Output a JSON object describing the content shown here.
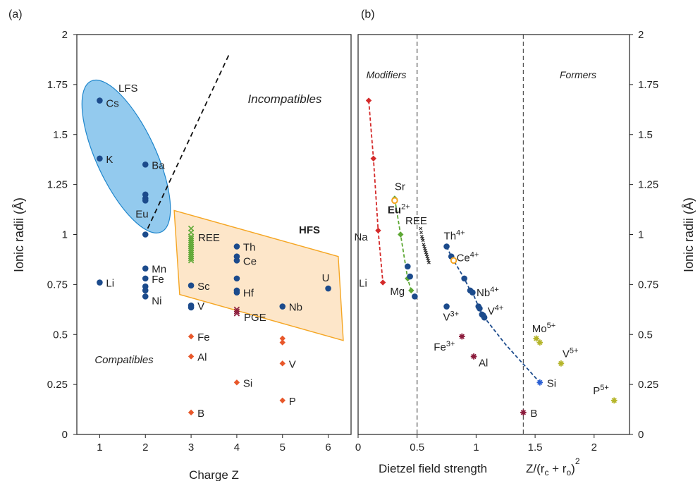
{
  "chart_data": [
    {
      "panel": "(a)",
      "type": "scatter",
      "title": "",
      "xlabel": "Charge Z",
      "ylabel": "Ionic radii (Å)",
      "xlim": [
        0.5,
        6.5
      ],
      "ylim": [
        0,
        2
      ],
      "x_ticks": [
        "1",
        "2",
        "3",
        "4",
        "5",
        "6"
      ],
      "y_ticks": [
        "0",
        "0.25",
        "0.5",
        "0.75",
        "1",
        "1.25",
        "1.5",
        "1.75",
        "2"
      ],
      "annotations": {
        "incompatibles": "Incompatibles",
        "compatibles": "Compatibles",
        "lfs": "LFS",
        "hfs": "HFS",
        "ree": "REE",
        "pge": "PGE"
      },
      "regions": [
        {
          "name": "LFS",
          "color": "#3a9fe0"
        },
        {
          "name": "HFS",
          "color": "#f5a623"
        }
      ],
      "series": [
        {
          "group": "blue",
          "color": "#1c4b8c",
          "points": [
            {
              "x": 1,
              "y": 1.67,
              "label": "Cs"
            },
            {
              "x": 1,
              "y": 1.38,
              "label": "K"
            },
            {
              "x": 1,
              "y": 0.76,
              "label": "Li"
            },
            {
              "x": 2,
              "y": 1.35,
              "label": "Ba"
            },
            {
              "x": 2,
              "y": 1.2,
              "label": ""
            },
            {
              "x": 2,
              "y": 1.18,
              "label": ""
            },
            {
              "x": 2,
              "y": 1.17,
              "label": "Eu"
            },
            {
              "x": 2,
              "y": 1.0,
              "label": ""
            },
            {
              "x": 2,
              "y": 0.83,
              "label": "Mn"
            },
            {
              "x": 2,
              "y": 0.78,
              "label": "Fe"
            },
            {
              "x": 2,
              "y": 0.74,
              "label": ""
            },
            {
              "x": 2,
              "y": 0.72,
              "label": ""
            },
            {
              "x": 2,
              "y": 0.69,
              "label": "Ni"
            },
            {
              "x": 3,
              "y": 0.745,
              "label": "Sc"
            },
            {
              "x": 3,
              "y": 0.645,
              "label": "V"
            },
            {
              "x": 3,
              "y": 0.635,
              "label": ""
            },
            {
              "x": 4,
              "y": 0.94,
              "label": "Th"
            },
            {
              "x": 4,
              "y": 0.89,
              "label": ""
            },
            {
              "x": 4,
              "y": 0.87,
              "label": "Ce"
            },
            {
              "x": 4,
              "y": 0.78,
              "label": ""
            },
            {
              "x": 4,
              "y": 0.72,
              "label": ""
            },
            {
              "x": 4,
              "y": 0.71,
              "label": "Hf"
            },
            {
              "x": 5,
              "y": 0.64,
              "label": "Nb"
            },
            {
              "x": 6,
              "y": 0.73,
              "label": "U"
            }
          ]
        },
        {
          "group": "orange",
          "color": "#e8572a",
          "points": [
            {
              "x": 3,
              "y": 0.49,
              "label": "Fe"
            },
            {
              "x": 3,
              "y": 0.39,
              "label": "Al"
            },
            {
              "x": 3,
              "y": 0.11,
              "label": "B"
            },
            {
              "x": 4,
              "y": 0.26,
              "label": "Si"
            },
            {
              "x": 5,
              "y": 0.48,
              "label": ""
            },
            {
              "x": 5,
              "y": 0.46,
              "label": ""
            },
            {
              "x": 5,
              "y": 0.355,
              "label": "V"
            },
            {
              "x": 5,
              "y": 0.17,
              "label": "P"
            }
          ]
        },
        {
          "group": "ree",
          "color": "#5ea835",
          "x": 3,
          "y": [
            1.03,
            1.01,
            0.99,
            0.98,
            0.97,
            0.96,
            0.95,
            0.94,
            0.93,
            0.92,
            0.91,
            0.9,
            0.89,
            0.88,
            0.87
          ]
        },
        {
          "group": "pge",
          "color": "#8c1c3c",
          "x": 4,
          "y": [
            0.625,
            0.615,
            0.605
          ]
        }
      ]
    },
    {
      "panel": "(b)",
      "type": "scatter",
      "title": "",
      "xlabel": "Dietzel field strength",
      "xlabel_formula": "Z/(rc + ro)2",
      "ylabel": "Ionic radii (Å)",
      "xlim": [
        0,
        2.3
      ],
      "ylim": [
        0,
        2
      ],
      "x_ticks": [
        "0",
        "0.5",
        "1",
        "1.5",
        "2"
      ],
      "y_ticks": [
        "0",
        "0.25",
        "0.5",
        "0.75",
        "1",
        "1.25",
        "1.5",
        "1.75",
        "2"
      ],
      "vlines": [
        0.5,
        1.4
      ],
      "annotations": {
        "modifiers": "Modifiers",
        "formers": "Formers",
        "ree": "REE"
      },
      "series": [
        {
          "group": "red",
          "color": "#d42a2a",
          "points": [
            {
              "x": 0.09,
              "y": 1.67,
              "label": ""
            },
            {
              "x": 0.13,
              "y": 1.38,
              "label": ""
            },
            {
              "x": 0.17,
              "y": 1.02,
              "label": "Na"
            },
            {
              "x": 0.21,
              "y": 0.76,
              "label": "Li"
            }
          ]
        },
        {
          "group": "green",
          "color": "#5ea835",
          "points": [
            {
              "x": 0.31,
              "y": 1.18,
              "label": "Sr"
            },
            {
              "x": 0.36,
              "y": 1.0,
              "label": ""
            },
            {
              "x": 0.42,
              "y": 0.78,
              "label": ""
            },
            {
              "x": 0.45,
              "y": 0.72,
              "label": "Mg"
            }
          ]
        },
        {
          "group": "blue",
          "color": "#1c4b8c",
          "points": [
            {
              "x": 0.42,
              "y": 0.84,
              "label": ""
            },
            {
              "x": 0.44,
              "y": 0.79,
              "label": ""
            },
            {
              "x": 0.48,
              "y": 0.69,
              "label": ""
            },
            {
              "x": 0.75,
              "y": 0.94,
              "label": "Th4+"
            },
            {
              "x": 0.79,
              "y": 0.89,
              "label": ""
            },
            {
              "x": 0.9,
              "y": 0.78,
              "label": ""
            },
            {
              "x": 0.95,
              "y": 0.72,
              "label": "Nb4+"
            },
            {
              "x": 0.97,
              "y": 0.71,
              "label": ""
            },
            {
              "x": 1.02,
              "y": 0.64,
              "label": ""
            },
            {
              "x": 1.03,
              "y": 0.63,
              "label": ""
            },
            {
              "x": 1.05,
              "y": 0.6,
              "label": "V4+"
            },
            {
              "x": 1.06,
              "y": 0.595,
              "label": ""
            },
            {
              "x": 1.07,
              "y": 0.585,
              "label": ""
            },
            {
              "x": 0.75,
              "y": 0.64,
              "label": "V3+"
            }
          ]
        },
        {
          "group": "orange",
          "color": "#f5a623",
          "points": [
            {
              "x": 0.31,
              "y": 1.17,
              "label": "Eu2+"
            },
            {
              "x": 0.81,
              "y": 0.87,
              "label": "Ce4+"
            }
          ]
        },
        {
          "group": "ree",
          "color": "#333333",
          "points": [
            {
              "x": 0.53,
              "y": 1.03
            },
            {
              "x": 0.535,
              "y": 1.01
            },
            {
              "x": 0.54,
              "y": 0.99
            },
            {
              "x": 0.545,
              "y": 0.98
            },
            {
              "x": 0.55,
              "y": 0.97
            },
            {
              "x": 0.555,
              "y": 0.95
            },
            {
              "x": 0.56,
              "y": 0.94
            },
            {
              "x": 0.565,
              "y": 0.93
            },
            {
              "x": 0.57,
              "y": 0.92
            },
            {
              "x": 0.575,
              "y": 0.91
            },
            {
              "x": 0.58,
              "y": 0.9
            },
            {
              "x": 0.585,
              "y": 0.89
            },
            {
              "x": 0.59,
              "y": 0.88
            },
            {
              "x": 0.595,
              "y": 0.87
            },
            {
              "x": 0.6,
              "y": 0.86
            }
          ]
        },
        {
          "group": "maroon",
          "color": "#8c1c3c",
          "points": [
            {
              "x": 0.88,
              "y": 0.49,
              "label": "Fe3+"
            },
            {
              "x": 0.98,
              "y": 0.39,
              "label": "Al"
            },
            {
              "x": 1.4,
              "y": 0.11,
              "label": "B"
            }
          ]
        },
        {
          "group": "si",
          "color": "#2a5fd4",
          "points": [
            {
              "x": 1.54,
              "y": 0.26,
              "label": "Si"
            }
          ]
        },
        {
          "group": "olive",
          "color": "#b5b52a",
          "points": [
            {
              "x": 1.51,
              "y": 0.48,
              "label": "Mo5+"
            },
            {
              "x": 1.54,
              "y": 0.46,
              "label": ""
            },
            {
              "x": 1.72,
              "y": 0.355,
              "label": "V5+"
            },
            {
              "x": 2.17,
              "y": 0.17,
              "label": "P5+"
            }
          ]
        }
      ]
    }
  ]
}
